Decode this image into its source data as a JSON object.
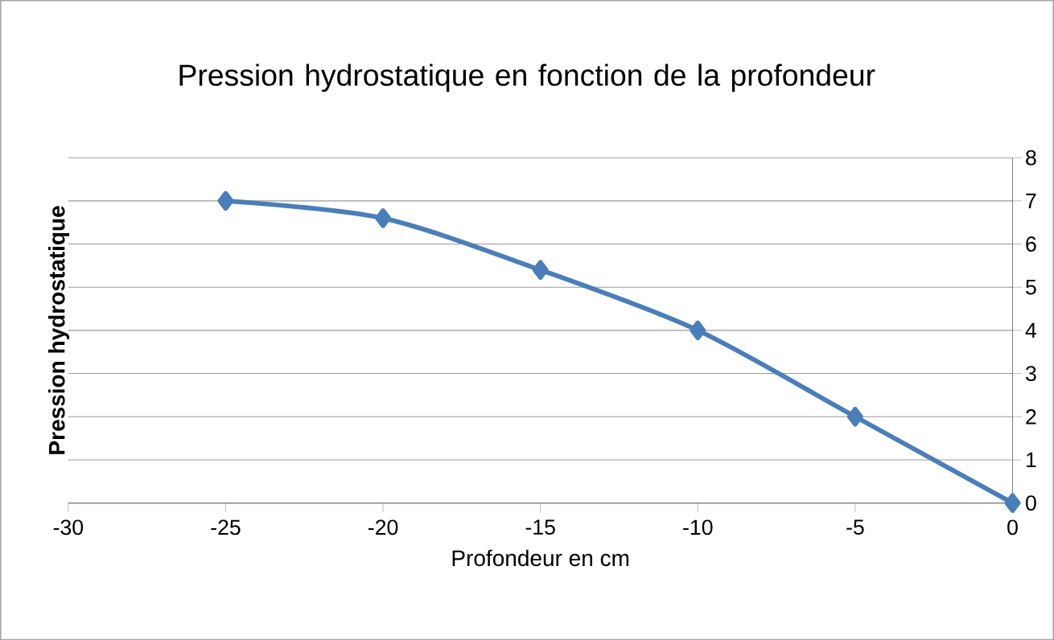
{
  "chart_data": {
    "type": "line",
    "title": "Pression hydrostatique en fonction de la profondeur",
    "xlabel": "Profondeur en cm",
    "ylabel": "Pression hydrostatique",
    "x": [
      -25,
      -20,
      -15,
      -10,
      -5,
      0
    ],
    "series": [
      {
        "color": "#4a7ebb",
        "values": [
          7,
          6.6,
          5.4,
          4,
          2,
          0
        ]
      }
    ],
    "xlim": [
      -30,
      0
    ],
    "xticks": [
      -30,
      -25,
      -20,
      -15,
      -10,
      -5,
      0
    ],
    "ylim": [
      0,
      8
    ],
    "yticks": [
      0,
      1,
      2,
      3,
      4,
      5,
      6,
      7,
      8
    ],
    "grid": "y",
    "marker": "diamond",
    "line_style": "solid"
  }
}
